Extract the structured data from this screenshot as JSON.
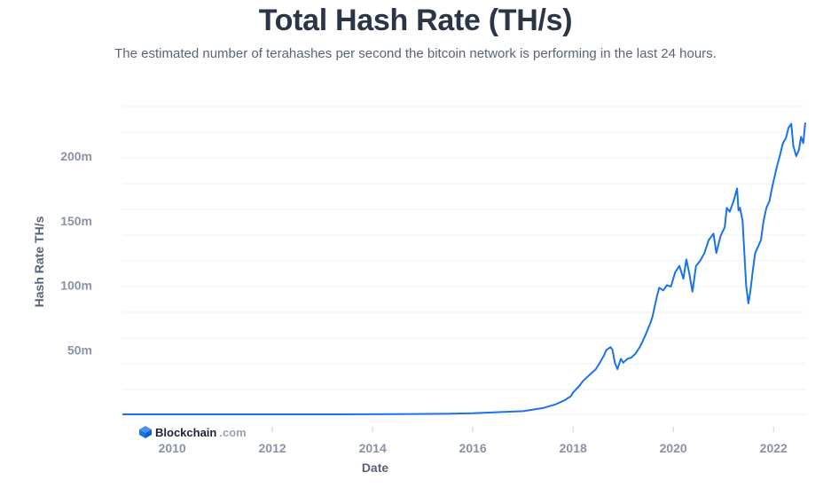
{
  "header": {
    "title": "Total Hash Rate (TH/s)",
    "subtitle": "The estimated number of terahashes per second the bitcoin network is performing in the last 24 hours."
  },
  "brand": {
    "name": "Blockchain",
    "suffix": ".com",
    "icon": "blockchain-cube-icon",
    "color": "#1a73e8"
  },
  "chart_data": {
    "type": "line",
    "title": "Total Hash Rate (TH/s)",
    "xlabel": "Date",
    "ylabel": "Hash Rate TH/s",
    "x_ticks": [
      "2010",
      "2012",
      "2014",
      "2016",
      "2018",
      "2020",
      "2022"
    ],
    "y_ticks": [
      "50m",
      "100m",
      "150m",
      "200m"
    ],
    "ylim": [
      0,
      240000000
    ],
    "xlim": [
      "2009-01-03",
      "2022-08-20"
    ],
    "grid": true,
    "line_color": "#1a73e8",
    "series": [
      {
        "x": [
          "2009-01-03",
          "2011-01-01",
          "2013-01-01",
          "2014-06-01",
          "2015-06-01",
          "2016-01-01",
          "2016-06-01",
          "2017-01-01",
          "2017-06-01",
          "2017-09-01",
          "2017-11-01",
          "2017-12-15",
          "2018-01-01",
          "2018-02-15",
          "2018-03-15",
          "2018-04-15",
          "2018-05-15",
          "2018-06-15",
          "2018-07-15",
          "2018-08-15",
          "2018-09-01",
          "2018-10-01",
          "2018-10-15",
          "2018-11-01",
          "2018-11-20",
          "2018-12-15",
          "2019-01-01",
          "2019-02-01",
          "2019-03-01",
          "2019-04-01",
          "2019-05-01",
          "2019-05-20",
          "2019-06-15",
          "2019-07-15",
          "2019-08-01",
          "2019-09-01",
          "2019-09-20",
          "2019-10-20",
          "2019-11-15",
          "2019-12-15",
          "2020-01-15",
          "2020-02-15",
          "2020-03-15",
          "2020-04-05",
          "2020-04-25",
          "2020-05-20",
          "2020-06-15",
          "2020-07-15",
          "2020-08-15",
          "2020-09-15",
          "2020-10-20",
          "2020-11-10",
          "2020-12-10",
          "2021-01-10",
          "2021-01-25",
          "2021-02-15",
          "2021-03-15",
          "2021-04-10",
          "2021-04-20",
          "2021-05-01",
          "2021-05-20",
          "2021-06-15",
          "2021-07-01",
          "2021-07-15",
          "2021-08-01",
          "2021-08-20",
          "2021-09-10",
          "2021-10-01",
          "2021-10-20",
          "2021-11-10",
          "2021-12-01",
          "2021-12-20",
          "2022-01-10",
          "2022-01-25",
          "2022-02-15",
          "2022-03-10",
          "2022-04-01",
          "2022-04-20",
          "2022-05-10",
          "2022-05-25",
          "2022-06-15",
          "2022-07-05",
          "2022-07-20",
          "2022-08-05",
          "2022-08-20"
        ],
        "values": [
          0,
          0,
          8,
          150000,
          400000,
          800000,
          1500000,
          2500000,
          5000000,
          8000000,
          11000000,
          14000000,
          17000000,
          22000000,
          26000000,
          29000000,
          32000000,
          35000000,
          40000000,
          46000000,
          50000000,
          52000000,
          50000000,
          40000000,
          35000000,
          43000000,
          40000000,
          43000000,
          44000000,
          47000000,
          52000000,
          56000000,
          62000000,
          70000000,
          75000000,
          90000000,
          98000000,
          96000000,
          100000000,
          99000000,
          110000000,
          115000000,
          105000000,
          120000000,
          110000000,
          95000000,
          115000000,
          119000000,
          125000000,
          135000000,
          140000000,
          125000000,
          138000000,
          145000000,
          160000000,
          157000000,
          165000000,
          175000000,
          158000000,
          160000000,
          150000000,
          100000000,
          86000000,
          95000000,
          110000000,
          125000000,
          130000000,
          135000000,
          150000000,
          160000000,
          165000000,
          175000000,
          185000000,
          192000000,
          200000000,
          210000000,
          214000000,
          222000000,
          225000000,
          208000000,
          200000000,
          205000000,
          215000000,
          210000000,
          226000000
        ]
      }
    ]
  },
  "axis": {
    "x_title": "Date",
    "y_title": "Hash Rate TH/s"
  }
}
